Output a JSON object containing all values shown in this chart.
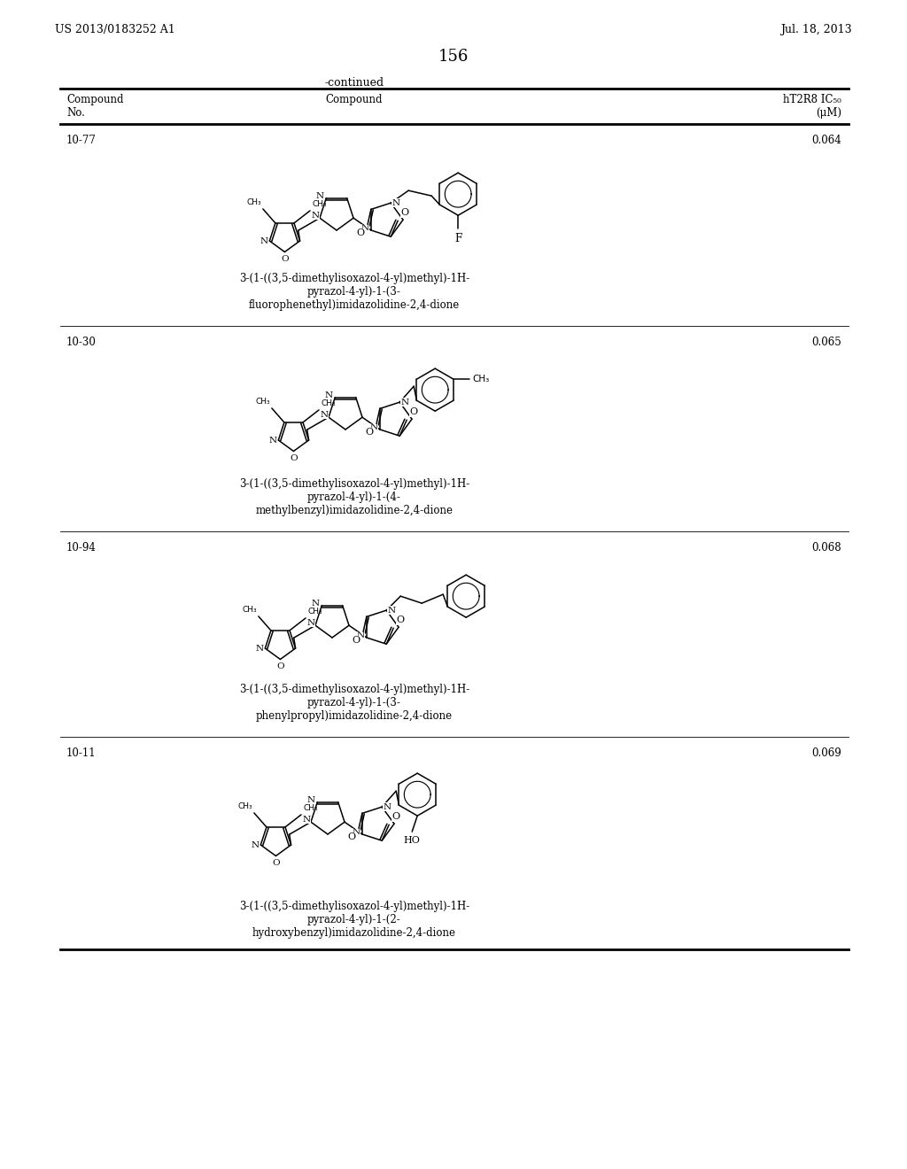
{
  "page_left_text": "US 2013/0183252 A1",
  "page_right_text": "Jul. 18, 2013",
  "page_number": "156",
  "continued_text": "-continued",
  "bg_color": "#ffffff",
  "text_color": "#000000",
  "table_header_col1": "Compound\nNo.",
  "table_header_col2": "Compound",
  "table_header_col3": "hT2R8 IC₅₀\n(μM)",
  "rows": [
    {
      "compound_no": "10-77",
      "ic50": "0.064",
      "name_lines": [
        "3-(1-((3,5-dimethylisoxazol-4-yl)methyl)-1H-",
        "pyrazol-4-yl)-1-(3-",
        "fluorophenethyl)imidazolidine-2,4-dione"
      ]
    },
    {
      "compound_no": "10-30",
      "ic50": "0.065",
      "name_lines": [
        "3-(1-((3,5-dimethylisoxazol-4-yl)methyl)-1H-",
        "pyrazol-4-yl)-1-(4-",
        "methylbenzyl)imidazolidine-2,4-dione"
      ]
    },
    {
      "compound_no": "10-94",
      "ic50": "0.068",
      "name_lines": [
        "3-(1-((3,5-dimethylisoxazol-4-yl)methyl)-1H-",
        "pyrazol-4-yl)-1-(3-",
        "phenylpropyl)imidazolidine-2,4-dione"
      ]
    },
    {
      "compound_no": "10-11",
      "ic50": "0.069",
      "name_lines": [
        "3-(1-((3,5-dimethylisoxazol-4-yl)methyl)-1H-",
        "pyrazol-4-yl)-1-(2-",
        "hydroxybenzyl)imidazolidine-2,4-dione"
      ]
    }
  ]
}
